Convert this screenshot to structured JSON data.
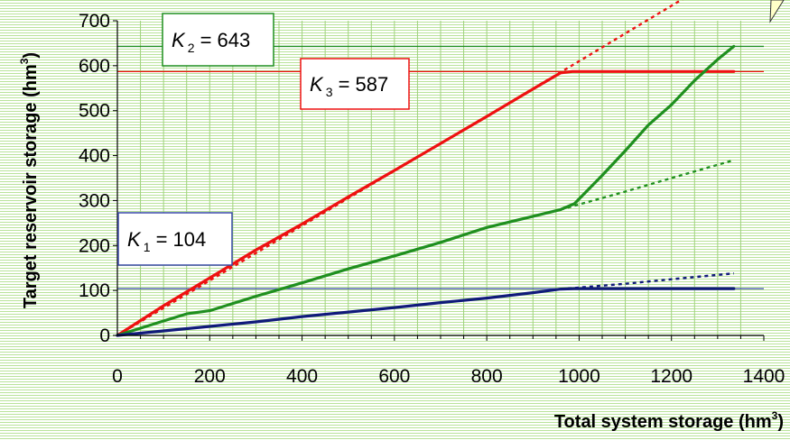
{
  "chart_data": {
    "type": "line",
    "xlabel": "Total system storage (hm",
    "xlabel_sup": "3",
    "xlabel_close": ")",
    "ylabel": "Target reservoir storage (hm",
    "ylabel_sup": "3",
    "ylabel_close": ")",
    "xlim": [
      0,
      1400
    ],
    "ylim": [
      0,
      700
    ],
    "xticks": [
      0,
      200,
      400,
      600,
      800,
      1000,
      1200,
      1400
    ],
    "yticks": [
      0,
      100,
      200,
      300,
      400,
      500,
      600,
      700
    ],
    "grid": "vertical minor ticks only",
    "colors": {
      "red": "#ee1111",
      "green": "#1f8f1f",
      "navy": "#101a7a",
      "cap_blue": "#3a4aa8"
    },
    "series": [
      {
        "color": "#ee1111",
        "style": "solid",
        "x": [
          0,
          100,
          200,
          300,
          400,
          500,
          600,
          700,
          800,
          900,
          960,
          985,
          1000,
          1100,
          1200,
          1335
        ],
        "y": [
          0,
          66,
          128,
          190,
          248,
          308,
          367,
          427,
          487,
          548,
          584,
          587,
          587,
          587,
          587,
          587
        ]
      },
      {
        "color": "#ee1111",
        "style": "dotted",
        "x": [
          0,
          500,
          1000,
          1300
        ],
        "y": [
          0,
          305,
          610,
          795
        ]
      },
      {
        "color": "#1f8f1f",
        "style": "solid",
        "x": [
          0,
          100,
          150,
          200,
          300,
          400,
          500,
          600,
          700,
          800,
          900,
          960,
          990,
          1050,
          1100,
          1150,
          1200,
          1250,
          1300,
          1335
        ],
        "y": [
          0,
          32,
          48,
          55,
          87,
          117,
          148,
          177,
          207,
          240,
          265,
          280,
          293,
          356,
          411,
          468,
          513,
          567,
          614,
          643
        ]
      },
      {
        "color": "#1f8f1f",
        "style": "dotted",
        "x": [
          960,
          1100,
          1200,
          1335
        ],
        "y": [
          280,
          320,
          350,
          390
        ]
      },
      {
        "color": "#101a7a",
        "style": "solid",
        "x": [
          0,
          100,
          200,
          300,
          400,
          500,
          600,
          700,
          800,
          900,
          960,
          990,
          1100,
          1200,
          1335
        ],
        "y": [
          0,
          10,
          20,
          30,
          42,
          52,
          62,
          73,
          83,
          95,
          103,
          104,
          104,
          104,
          104
        ]
      },
      {
        "color": "#101a7a",
        "style": "dotted",
        "x": [
          960,
          1100,
          1200,
          1335
        ],
        "y": [
          103,
          115,
          125,
          138
        ]
      }
    ],
    "capacity_lines": [
      {
        "label_k": "K",
        "label_sub": "1",
        "label_rest": " = 104",
        "value": 104,
        "color": "#3a4aa8"
      },
      {
        "label_k": "K",
        "label_sub": "2",
        "label_rest": " = 643",
        "value": 643,
        "color": "#1f8f1f"
      },
      {
        "label_k": "K",
        "label_sub": "3",
        "label_rest": " = 587",
        "value": 587,
        "color": "#ee1111"
      }
    ]
  }
}
